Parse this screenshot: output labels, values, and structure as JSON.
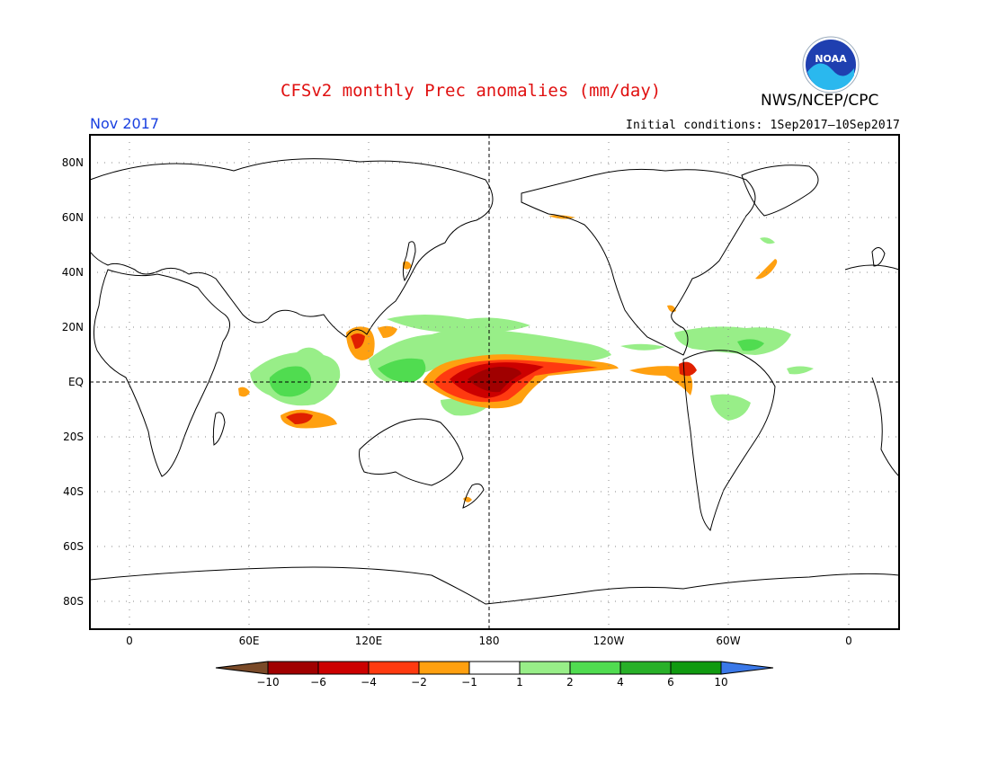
{
  "header": {
    "title": "CFSv2 monthly Prec anomalies (mm/day)",
    "agency": "NWS/NCEP/CPC",
    "valid_month": "Nov 2017",
    "initial_conditions": "Initial conditions: 1Sep2017–10Sep2017"
  },
  "logo": {
    "text": "NOAA"
  },
  "axes": {
    "lat_labels": [
      "80N",
      "60N",
      "40N",
      "20N",
      "EQ",
      "20S",
      "40S",
      "60S",
      "80S"
    ],
    "lon_labels": [
      "0",
      "60E",
      "120E",
      "180",
      "120W",
      "60W",
      "0"
    ]
  },
  "colorbar": {
    "labels": [
      "−10",
      "−6",
      "−4",
      "−2",
      "−1",
      "1",
      "2",
      "4",
      "6",
      "10"
    ],
    "colors": [
      "#7a4a28",
      "#a00000",
      "#cc0000",
      "#ff3a10",
      "#ffa010",
      "#ffffff",
      "#98ee88",
      "#50dc50",
      "#28b028",
      "#109a10",
      "#3a78e8"
    ]
  },
  "colors": {
    "title": "#e01010",
    "valid_month": "#1a40e0",
    "dry_strong": "#a00000",
    "dry": "#e02000",
    "dry_weak": "#ffa010",
    "wet_weak": "#98ee88",
    "wet": "#50dc50"
  }
}
